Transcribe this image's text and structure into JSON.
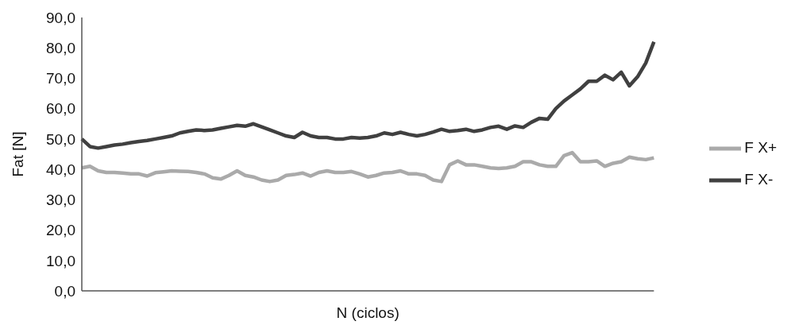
{
  "chart_data": {
    "type": "line",
    "xlabel": "N (ciclos)",
    "ylabel": "Fat [N]",
    "categories": [
      null,
      null,
      null,
      null,
      null,
      null,
      null,
      null,
      null,
      null,
      null,
      null,
      null,
      null,
      null,
      null,
      null,
      null,
      null,
      null,
      null,
      null,
      null,
      null,
      null,
      null,
      null,
      null,
      null,
      null,
      null,
      null,
      null,
      null,
      null,
      null,
      null,
      null,
      null,
      null,
      null,
      null,
      null,
      null,
      null,
      null,
      null,
      null,
      null,
      null,
      null,
      null,
      null,
      null,
      null,
      null,
      null,
      null,
      null,
      null,
      null,
      null,
      null,
      null,
      null,
      null,
      null,
      null,
      null,
      null,
      null
    ],
    "series": [
      {
        "name": "F X+",
        "color": "#aaaaaa",
        "values": [
          40.5,
          41,
          39.5,
          39,
          39,
          38.8,
          38.5,
          38.5,
          37.8,
          38.9,
          39.2,
          39.5,
          39.4,
          39.3,
          39,
          38.5,
          37.2,
          36.8,
          38,
          39.5,
          38,
          37.5,
          36.5,
          36,
          36.5,
          38,
          38.3,
          38.8,
          37.8,
          39,
          39.5,
          39,
          39,
          39.3,
          38.5,
          37.5,
          38,
          38.8,
          39,
          39.5,
          38.5,
          38.5,
          38,
          36.5,
          36,
          41.5,
          42.8,
          41.5,
          41.5,
          41,
          40.5,
          40.3,
          40.5,
          41,
          42.5,
          42.5,
          41.5,
          41,
          41,
          44.5,
          45.5,
          42.5,
          42.5,
          42.8,
          41,
          42,
          42.5,
          44,
          43.5,
          43.2,
          43.8
        ]
      },
      {
        "name": "F X-",
        "color": "#404040",
        "values": [
          50,
          47.5,
          47,
          47.5,
          48,
          48.3,
          48.8,
          49.2,
          49.5,
          50,
          50.5,
          51,
          52,
          52.5,
          53,
          52.8,
          53,
          53.5,
          54,
          54.5,
          54.2,
          55,
          54,
          53,
          52,
          51,
          50.5,
          52.2,
          51,
          50.5,
          50.5,
          50,
          50,
          50.5,
          50.3,
          50.5,
          51,
          52,
          51.5,
          52.2,
          51.5,
          51,
          51.5,
          52.3,
          53.2,
          52.5,
          52.8,
          53.2,
          52.5,
          53,
          53.8,
          54.2,
          53.2,
          54.3,
          53.8,
          55.5,
          56.8,
          56.5,
          60,
          62.5,
          64.5,
          66.5,
          69,
          69,
          71,
          69.5,
          72,
          67.5,
          70.5,
          75,
          82
        ]
      }
    ],
    "ylim": [
      0,
      90
    ],
    "yticks": [
      {
        "value": 0,
        "label": "0,0"
      },
      {
        "value": 10,
        "label": "10,0"
      },
      {
        "value": 20,
        "label": "20,0"
      },
      {
        "value": 30,
        "label": "30,0"
      },
      {
        "value": 40,
        "label": "40,0"
      },
      {
        "value": 50,
        "label": "50,0"
      },
      {
        "value": 60,
        "label": "60,0"
      },
      {
        "value": 70,
        "label": "70,0"
      },
      {
        "value": 80,
        "label": "80,0"
      },
      {
        "value": 90,
        "label": "90,0"
      }
    ],
    "tick_labels": "y",
    "grid": false,
    "legend": "right",
    "marker": "none",
    "line_style": "solid"
  }
}
